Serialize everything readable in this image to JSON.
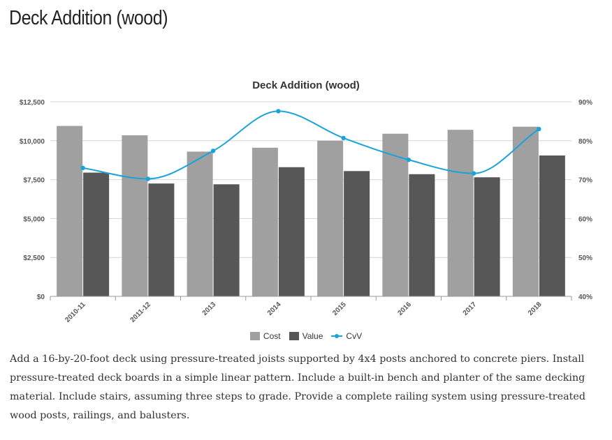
{
  "page": {
    "title": "Deck Addition (wood)",
    "description": "Add a 16-by-20-foot deck using pressure-treated joists supported by 4x4 posts anchored to concrete piers. Install pressure-treated deck boards in a simple linear pattern. Include a built-in bench and planter of the same decking material. Include stairs, assuming three steps to grade. Provide a complete railing system using pressure-treated wood posts, railings, and balusters."
  },
  "chart_data": {
    "type": "bar",
    "title": "Deck Addition (wood)",
    "categories": [
      "2010-11",
      "2011-12",
      "2013",
      "2014",
      "2015",
      "2016",
      "2017",
      "2018"
    ],
    "series": [
      {
        "name": "Cost",
        "type": "bar",
        "axis": "left",
        "color": "#a0a0a0",
        "values": [
          10950,
          10350,
          9300,
          9550,
          10000,
          10450,
          10700,
          10900
        ]
      },
      {
        "name": "Value",
        "type": "bar",
        "axis": "left",
        "color": "#575757",
        "values": [
          7950,
          7250,
          7200,
          8300,
          8050,
          7850,
          7650,
          9050
        ]
      },
      {
        "name": "CvV",
        "type": "line",
        "axis": "right",
        "color": "#1aa3d9",
        "values": [
          73.0,
          70.2,
          77.4,
          87.6,
          80.7,
          75.1,
          71.6,
          83.0
        ]
      }
    ],
    "y_left": {
      "min": 0,
      "max": 12500,
      "ticks": [
        0,
        2500,
        5000,
        7500,
        10000,
        12500
      ],
      "tick_labels": [
        "$0",
        "$2,500",
        "$5,000",
        "$7,500",
        "$10,000",
        "$12,500"
      ]
    },
    "y_right": {
      "min": 40,
      "max": 90,
      "ticks": [
        40,
        50,
        60,
        70,
        80,
        90
      ],
      "tick_labels": [
        "40%",
        "50%",
        "60%",
        "70%",
        "80%",
        "90%"
      ]
    },
    "grid": true,
    "legend": [
      "Cost",
      "Value",
      "CvV"
    ],
    "legend_position": "bottom-center"
  }
}
